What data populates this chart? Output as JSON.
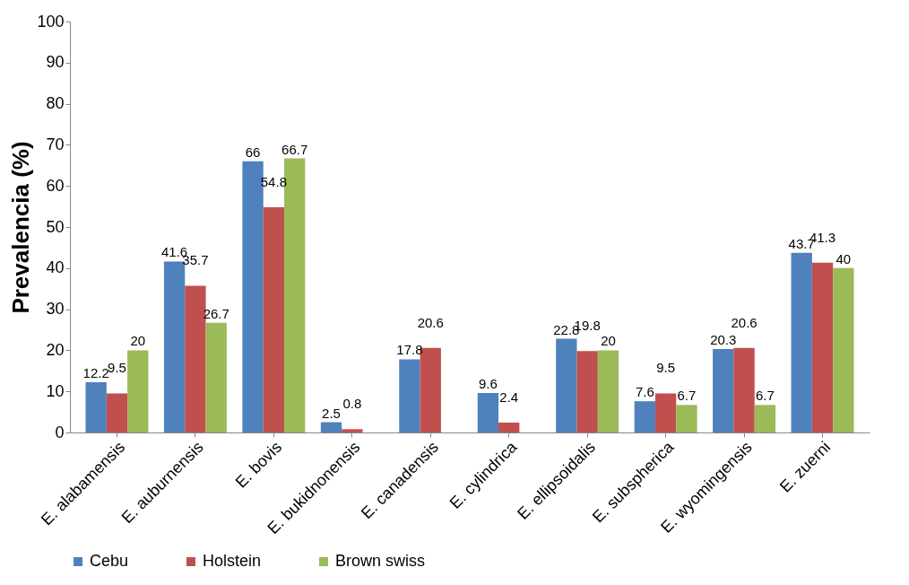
{
  "chart_data": {
    "type": "bar",
    "ylabel": "Prevalencia (%)",
    "categories": [
      "E. alabamensis",
      "E. auburnensis",
      "E. bovis",
      "E. bukidnonensis",
      "E. canadensis",
      "E. cylindrica",
      "E. ellipsoidalis",
      "E. subspherica",
      "E. wyomingensis",
      "E. zuerni"
    ],
    "series": [
      {
        "name": "Cebu",
        "color": "#4f81bd",
        "values": [
          12.2,
          41.6,
          66,
          2.5,
          17.8,
          9.6,
          22.8,
          7.6,
          20.3,
          43.7
        ]
      },
      {
        "name": "Holstein",
        "color": "#c0504d",
        "values": [
          9.5,
          35.7,
          54.8,
          0.8,
          20.6,
          2.4,
          19.8,
          9.5,
          20.6,
          41.3
        ]
      },
      {
        "name": "Brown swiss",
        "color": "#9bbb59",
        "values": [
          20,
          26.7,
          66.7,
          null,
          null,
          null,
          20,
          6.7,
          6.7,
          40
        ]
      }
    ],
    "ylim": [
      0,
      100
    ],
    "yticks": [
      0,
      10,
      20,
      30,
      40,
      50,
      60,
      70,
      80,
      90,
      100
    ],
    "grid": false,
    "legend": "bottom",
    "data_labels": true
  }
}
